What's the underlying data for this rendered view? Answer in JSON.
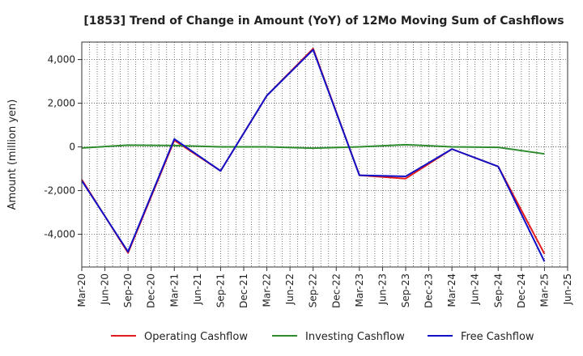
{
  "chart_data": {
    "type": "line",
    "title": "[1853]  Trend of Change in Amount (YoY) of 12Mo Moving Sum of Cashflows",
    "xlabel": "",
    "ylabel": "Amount (million yen)",
    "ylim": [
      -5500,
      4800
    ],
    "yticks": [
      4000,
      2000,
      0,
      -2000,
      -4000
    ],
    "ytick_labels": [
      "4,000",
      "2,000",
      "0",
      "-2,000",
      "-4,000"
    ],
    "x_tick_labels": [
      "Mar-20",
      "Jun-20",
      "Sep-20",
      "Dec-20",
      "Mar-21",
      "Jun-21",
      "Sep-21",
      "Dec-21",
      "Mar-22",
      "Jun-22",
      "Sep-22",
      "Dec-22",
      "Mar-23",
      "Jun-23",
      "Sep-23",
      "Dec-23",
      "Mar-24",
      "Jun-24",
      "Sep-24",
      "Dec-24",
      "Mar-25",
      "Jun-25"
    ],
    "grid": true,
    "legend_position": "bottom",
    "series": [
      {
        "name": "Operating Cashflow",
        "color": "#e31a1c",
        "points": [
          {
            "x": "Mar-20",
            "y": -1500
          },
          {
            "x": "Sep-20",
            "y": -4850
          },
          {
            "x": "Mar-21",
            "y": 300
          },
          {
            "x": "Sep-21",
            "y": -1100
          },
          {
            "x": "Mar-22",
            "y": 2350
          },
          {
            "x": "Sep-22",
            "y": 4500
          },
          {
            "x": "Mar-23",
            "y": -1300
          },
          {
            "x": "Sep-23",
            "y": -1450
          },
          {
            "x": "Mar-24",
            "y": -100
          },
          {
            "x": "Sep-24",
            "y": -900
          },
          {
            "x": "Mar-25",
            "y": -4900
          }
        ]
      },
      {
        "name": "Investing Cashflow",
        "color": "#2e8b2e",
        "points": [
          {
            "x": "Mar-20",
            "y": -50
          },
          {
            "x": "Sep-20",
            "y": 80
          },
          {
            "x": "Mar-21",
            "y": 60
          },
          {
            "x": "Sep-21",
            "y": 0
          },
          {
            "x": "Mar-22",
            "y": 0
          },
          {
            "x": "Sep-22",
            "y": -60
          },
          {
            "x": "Mar-23",
            "y": 0
          },
          {
            "x": "Sep-23",
            "y": 100
          },
          {
            "x": "Mar-24",
            "y": 0
          },
          {
            "x": "Sep-24",
            "y": -20
          },
          {
            "x": "Mar-25",
            "y": -320
          }
        ]
      },
      {
        "name": "Free Cashflow",
        "color": "#1010c8",
        "points": [
          {
            "x": "Mar-20",
            "y": -1550
          },
          {
            "x": "Sep-20",
            "y": -4800
          },
          {
            "x": "Mar-21",
            "y": 360
          },
          {
            "x": "Sep-21",
            "y": -1100
          },
          {
            "x": "Mar-22",
            "y": 2350
          },
          {
            "x": "Sep-22",
            "y": 4450
          },
          {
            "x": "Mar-23",
            "y": -1300
          },
          {
            "x": "Sep-23",
            "y": -1350
          },
          {
            "x": "Mar-24",
            "y": -100
          },
          {
            "x": "Sep-24",
            "y": -900
          },
          {
            "x": "Mar-25",
            "y": -5250
          }
        ]
      }
    ]
  }
}
